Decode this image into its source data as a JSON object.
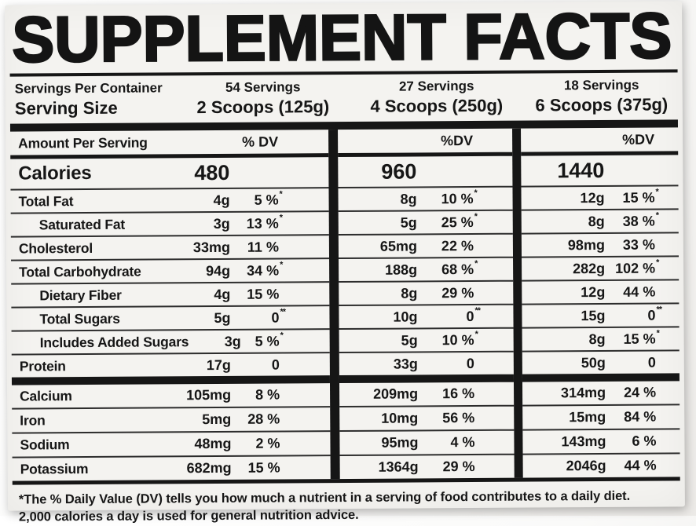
{
  "label": {
    "title": "SUPPLEMENT FACTS",
    "serving": {
      "servings_per_container_label": "Servings Per Container",
      "serving_size_label": "Serving Size",
      "options": [
        {
          "servings": "54 Servings",
          "size": "2 Scoops (125g)"
        },
        {
          "servings": "27 Servings",
          "size": "4 Scoops (250g)"
        },
        {
          "servings": "18 Servings",
          "size": "6 Scoops (375g)"
        }
      ]
    },
    "header": {
      "amount_per_serving": "Amount Per Serving",
      "dv": [
        "% DV",
        "%DV",
        "%DV"
      ]
    },
    "calories": {
      "name": "Calories",
      "values": [
        "480",
        "960",
        "1440"
      ]
    },
    "nutrients": [
      {
        "name": "Total Fat",
        "cols": [
          {
            "amt": "4g",
            "dv": "5 %",
            "mark": "*"
          },
          {
            "amt": "8g",
            "dv": "10 %",
            "mark": "*"
          },
          {
            "amt": "12g",
            "dv": "15 %",
            "mark": "*"
          }
        ]
      },
      {
        "name": "Saturated Fat",
        "cols": [
          {
            "amt": "3g",
            "dv": "13 %",
            "mark": "*"
          },
          {
            "amt": "5g",
            "dv": "25 %",
            "mark": "*"
          },
          {
            "amt": "8g",
            "dv": "38 %",
            "mark": "*"
          }
        ]
      },
      {
        "name": "Cholesterol",
        "cols": [
          {
            "amt": "33mg",
            "dv": "11 %",
            "mark": ""
          },
          {
            "amt": "65mg",
            "dv": "22 %",
            "mark": ""
          },
          {
            "amt": "98mg",
            "dv": "33 %",
            "mark": ""
          }
        ]
      },
      {
        "name": "Total Carbohydrate",
        "cols": [
          {
            "amt": "94g",
            "dv": "34 %",
            "mark": "*"
          },
          {
            "amt": "188g",
            "dv": "68 %",
            "mark": "*"
          },
          {
            "amt": "282g",
            "dv": "102 %",
            "mark": "*"
          }
        ]
      },
      {
        "name": "Dietary Fiber",
        "cols": [
          {
            "amt": "4g",
            "dv": "15 %",
            "mark": ""
          },
          {
            "amt": "8g",
            "dv": "29 %",
            "mark": ""
          },
          {
            "amt": "12g",
            "dv": "44 %",
            "mark": ""
          }
        ]
      },
      {
        "name": "Total Sugars",
        "cols": [
          {
            "amt": "5g",
            "dv": "0",
            "mark": "**"
          },
          {
            "amt": "10g",
            "dv": "0",
            "mark": "**"
          },
          {
            "amt": "15g",
            "dv": "0",
            "mark": "**"
          }
        ]
      },
      {
        "name": "Includes Added Sugars",
        "cols": [
          {
            "amt": "3g",
            "dv": "5 %",
            "mark": "*"
          },
          {
            "amt": "5g",
            "dv": "10 %",
            "mark": "*"
          },
          {
            "amt": "8g",
            "dv": "15 %",
            "mark": "*"
          }
        ]
      },
      {
        "name": "Protein",
        "cols": [
          {
            "amt": "17g",
            "dv": "0",
            "mark": ""
          },
          {
            "amt": "33g",
            "dv": "0",
            "mark": ""
          },
          {
            "amt": "50g",
            "dv": "0",
            "mark": ""
          }
        ]
      }
    ],
    "minerals": [
      {
        "name": "Calcium",
        "cols": [
          {
            "amt": "105mg",
            "dv": "8 %"
          },
          {
            "amt": "209mg",
            "dv": "16 %"
          },
          {
            "amt": "314mg",
            "dv": "24 %"
          }
        ]
      },
      {
        "name": "Iron",
        "cols": [
          {
            "amt": "5mg",
            "dv": "28 %"
          },
          {
            "amt": "10mg",
            "dv": "56 %"
          },
          {
            "amt": "15mg",
            "dv": "84 %"
          }
        ]
      },
      {
        "name": "Sodium",
        "cols": [
          {
            "amt": "48mg",
            "dv": "2 %"
          },
          {
            "amt": "95mg",
            "dv": "4 %"
          },
          {
            "amt": "143mg",
            "dv": "6 %"
          }
        ]
      },
      {
        "name": "Potassium",
        "cols": [
          {
            "amt": "682mg",
            "dv": "15 %"
          },
          {
            "amt": "1364g",
            "dv": "29 %"
          },
          {
            "amt": "2046g",
            "dv": "44 %"
          }
        ]
      }
    ],
    "footnote": {
      "line1": "*The % Daily Value (DV) tells you how much a nutrient in a serving of food contributes to a daily diet.",
      "line2": "2,000 calories a day is used for general nutrition advice."
    },
    "colors": {
      "paper": "#f4f3f0",
      "ink": "#161616"
    }
  }
}
